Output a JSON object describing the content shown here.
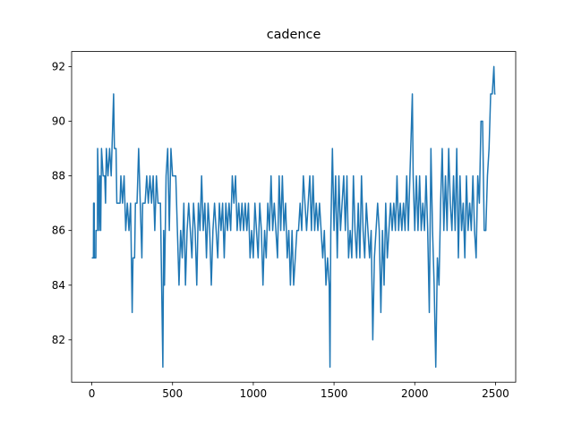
{
  "chart_data": {
    "type": "line",
    "title": "cadence",
    "x": [
      0,
      10,
      11,
      15,
      16,
      25,
      26,
      35,
      36,
      40,
      45,
      50,
      55,
      60,
      70,
      80,
      85,
      90,
      100,
      110,
      120,
      130,
      135,
      140,
      150,
      155,
      175,
      180,
      190,
      200,
      210,
      220,
      230,
      240,
      250,
      255,
      265,
      270,
      280,
      290,
      300,
      310,
      315,
      330,
      340,
      350,
      360,
      370,
      380,
      390,
      400,
      410,
      425,
      430,
      440,
      445,
      450,
      460,
      470,
      480,
      490,
      500,
      520,
      530,
      540,
      550,
      560,
      570,
      580,
      590,
      600,
      610,
      620,
      630,
      640,
      650,
      660,
      670,
      680,
      690,
      700,
      710,
      720,
      730,
      740,
      750,
      760,
      770,
      780,
      790,
      800,
      810,
      820,
      830,
      840,
      850,
      860,
      870,
      880,
      890,
      900,
      910,
      920,
      930,
      940,
      950,
      960,
      970,
      980,
      990,
      1000,
      1010,
      1020,
      1030,
      1040,
      1050,
      1060,
      1070,
      1080,
      1090,
      1100,
      1110,
      1120,
      1130,
      1140,
      1150,
      1160,
      1170,
      1180,
      1190,
      1200,
      1210,
      1220,
      1230,
      1240,
      1250,
      1260,
      1270,
      1280,
      1290,
      1300,
      1310,
      1320,
      1330,
      1340,
      1350,
      1360,
      1370,
      1380,
      1390,
      1400,
      1410,
      1420,
      1430,
      1440,
      1450,
      1460,
      1470,
      1475,
      1480,
      1490,
      1500,
      1510,
      1520,
      1530,
      1540,
      1550,
      1560,
      1570,
      1580,
      1590,
      1600,
      1610,
      1620,
      1630,
      1640,
      1650,
      1660,
      1670,
      1680,
      1690,
      1700,
      1710,
      1720,
      1730,
      1740,
      1750,
      1760,
      1770,
      1780,
      1790,
      1800,
      1810,
      1820,
      1830,
      1840,
      1850,
      1860,
      1870,
      1880,
      1890,
      1900,
      1910,
      1920,
      1930,
      1940,
      1950,
      1960,
      1970,
      1980,
      1985,
      1990,
      2000,
      2010,
      2020,
      2030,
      2040,
      2050,
      2060,
      2070,
      2080,
      2090,
      2100,
      2110,
      2120,
      2130,
      2140,
      2150,
      2160,
      2170,
      2180,
      2190,
      2200,
      2210,
      2220,
      2230,
      2240,
      2250,
      2260,
      2270,
      2280,
      2290,
      2300,
      2310,
      2320,
      2330,
      2340,
      2350,
      2360,
      2370,
      2380,
      2390,
      2400,
      2410,
      2420,
      2430,
      2440,
      2450,
      2460,
      2470,
      2480,
      2490,
      2495,
      2500
    ],
    "series": [
      {
        "color": "#1f77b4",
        "values": [
          85,
          85,
          87,
          87,
          85,
          85,
          86,
          86,
          89,
          88,
          86,
          88,
          86,
          89,
          88,
          88,
          87,
          89,
          88,
          89,
          88,
          90,
          91,
          89,
          89,
          87,
          87,
          88,
          87,
          88,
          86,
          87,
          86,
          87,
          83,
          85,
          85,
          87,
          87,
          89,
          87,
          85,
          87,
          87,
          88,
          87,
          88,
          87,
          88,
          86,
          88,
          87,
          87,
          85,
          81,
          86,
          84,
          88,
          89,
          86,
          89,
          88,
          88,
          86,
          84,
          86,
          85,
          87,
          84,
          86,
          87,
          86,
          85,
          87,
          86,
          84,
          87,
          86,
          88,
          86,
          87,
          85,
          87,
          86,
          84,
          86,
          87,
          86,
          85,
          87,
          86,
          87,
          85,
          87,
          86,
          87,
          86,
          88,
          87,
          88,
          86,
          87,
          86,
          87,
          86,
          87,
          86,
          87,
          85,
          86,
          85,
          87,
          86,
          85,
          87,
          86,
          84,
          86,
          85,
          87,
          86,
          88,
          86,
          87,
          86,
          85,
          88,
          86,
          88,
          86,
          87,
          85,
          86,
          84,
          86,
          84,
          85,
          86,
          86,
          87,
          86,
          88,
          87,
          86,
          87,
          88,
          86,
          88,
          86,
          87,
          86,
          87,
          86,
          85,
          86,
          84,
          85,
          84,
          81,
          86,
          89,
          86,
          88,
          85,
          88,
          86,
          87,
          88,
          86,
          88,
          85,
          86,
          85,
          88,
          86,
          85,
          87,
          85,
          88,
          86,
          85,
          87,
          86,
          85,
          86,
          82,
          85,
          86,
          87,
          86,
          83,
          86,
          84,
          87,
          85,
          86,
          87,
          86,
          87,
          86,
          88,
          86,
          87,
          86,
          87,
          86,
          88,
          86,
          88,
          90,
          91,
          88,
          86,
          88,
          86,
          88,
          86,
          87,
          86,
          88,
          86,
          83,
          89,
          86,
          84,
          81,
          85,
          84,
          87,
          89,
          86,
          88,
          86,
          89,
          87,
          86,
          88,
          86,
          89,
          85,
          88,
          86,
          87,
          85,
          88,
          86,
          87,
          86,
          88,
          86,
          85,
          88,
          87,
          90,
          90,
          86,
          86,
          88,
          89,
          91,
          91,
          92,
          91,
          91
        ]
      }
    ],
    "xlim": [
      -125,
      2625
    ],
    "ylim": [
      80.45,
      92.55
    ],
    "xticks": [
      0,
      500,
      1000,
      1500,
      2000,
      2500
    ],
    "yticks": [
      82,
      84,
      86,
      88,
      90,
      92
    ]
  }
}
